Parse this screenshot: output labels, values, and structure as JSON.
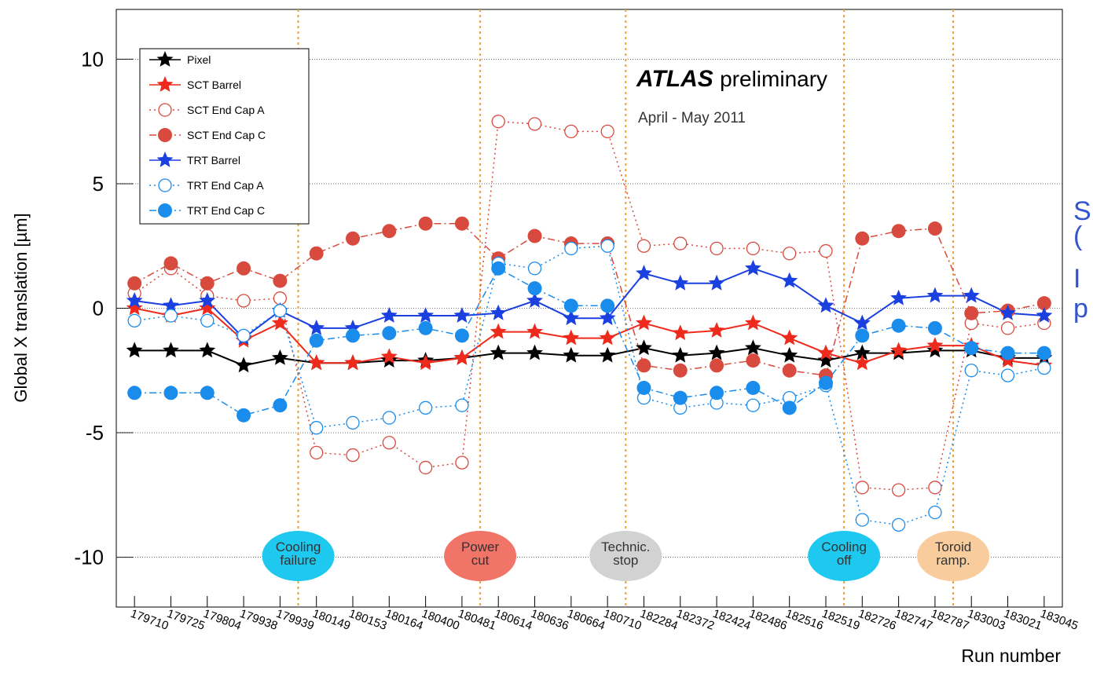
{
  "chart_data": {
    "type": "line",
    "title": [
      "ATLAS",
      "preliminary"
    ],
    "subtitle": "April - May 2011",
    "y_label": "Global X translation [µm]",
    "x_label": "Run number",
    "categories": [
      "179710",
      "179725",
      "179804",
      "179938",
      "179939",
      "180149",
      "180153",
      "180164",
      "180400",
      "180481",
      "180614",
      "180636",
      "180664",
      "180710",
      "182284",
      "182372",
      "182424",
      "182486",
      "182516",
      "182519",
      "182726",
      "182747",
      "182787",
      "183003",
      "183021",
      "183045"
    ],
    "ylim": [
      -12,
      12
    ],
    "yticks": [
      -10,
      -5,
      0,
      5,
      10
    ],
    "grid": true,
    "legend": "top-left",
    "event_line_color": "#f0a030",
    "annotations": [
      {
        "lines": [
          "Cooling",
          "failure"
        ],
        "after": "179939",
        "color": "#1ec8ee"
      },
      {
        "lines": [
          "Power",
          "cut"
        ],
        "after": "180481",
        "color": "#f07468"
      },
      {
        "lines": [
          "Technic.",
          "stop"
        ],
        "after": "180710",
        "color": "#d2d2d2"
      },
      {
        "lines": [
          "Cooling",
          "off"
        ],
        "after": "182519",
        "color": "#1ec8ee"
      },
      {
        "lines": [
          "Toroid",
          "ramp."
        ],
        "after": "182787",
        "color": "#f8cc9c"
      }
    ],
    "series": [
      {
        "name": "Pixel",
        "color": "#000000",
        "marker": "star",
        "line_style": "solid",
        "values": [
          -1.7,
          -1.7,
          -1.7,
          -2.3,
          -2.0,
          -2.2,
          -2.2,
          -2.1,
          -2.1,
          -2.0,
          -1.8,
          -1.8,
          -1.9,
          -1.9,
          -1.6,
          -1.9,
          -1.8,
          -1.6,
          -1.9,
          -2.1,
          -1.8,
          -1.8,
          -1.7,
          -1.7,
          -2.0,
          -2.0
        ]
      },
      {
        "name": "SCT Barrel",
        "color": "#ee2a1c",
        "marker": "star",
        "line_style": "solid",
        "values": [
          0.0,
          -0.3,
          0.0,
          -1.3,
          -0.6,
          -2.2,
          -2.2,
          -1.95,
          -2.2,
          -2.0,
          -0.95,
          -0.95,
          -1.2,
          -1.2,
          -0.6,
          -1.0,
          -0.9,
          -0.6,
          -1.2,
          -1.8,
          -2.2,
          -1.7,
          -1.5,
          -1.5,
          -2.1,
          -2.3
        ]
      },
      {
        "name": "SCT End Cap A",
        "color": "#d84a3e",
        "marker": "open-circle",
        "line_style": "dotted",
        "values": [
          0.6,
          1.6,
          0.5,
          0.3,
          0.4,
          -5.8,
          -5.9,
          -5.4,
          -6.4,
          -6.2,
          7.5,
          7.4,
          7.1,
          7.1,
          2.5,
          2.6,
          2.4,
          2.4,
          2.2,
          2.3,
          -7.2,
          -7.3,
          -7.2,
          -0.6,
          -0.8,
          -0.6
        ]
      },
      {
        "name": "SCT End Cap C",
        "color": "#d84a3e",
        "marker": "circle",
        "line_style": "dashdot",
        "values": [
          1.0,
          1.8,
          1.0,
          1.6,
          1.1,
          2.2,
          2.8,
          3.1,
          3.4,
          3.4,
          2.0,
          2.9,
          2.6,
          2.6,
          -2.3,
          -2.5,
          -2.3,
          -2.1,
          -2.5,
          -2.7,
          2.8,
          3.1,
          3.2,
          -0.2,
          -0.1,
          0.2
        ]
      },
      {
        "name": "TRT Barrel",
        "color": "#1a40e0",
        "marker": "star",
        "line_style": "solid",
        "values": [
          0.3,
          0.1,
          0.3,
          -1.2,
          -0.1,
          -0.8,
          -0.8,
          -0.3,
          -0.3,
          -0.3,
          -0.2,
          0.3,
          -0.4,
          -0.4,
          1.4,
          1.0,
          1.0,
          1.6,
          1.1,
          0.1,
          -0.6,
          0.4,
          0.5,
          0.5,
          -0.2,
          -0.3
        ]
      },
      {
        "name": "TRT End Cap A",
        "color": "#1a8cec",
        "marker": "open-circle",
        "line_style": "dotted",
        "values": [
          -0.5,
          -0.3,
          -0.5,
          -1.1,
          -0.1,
          -4.8,
          -4.6,
          -4.4,
          -4.0,
          -3.9,
          1.8,
          1.6,
          2.4,
          2.5,
          -3.6,
          -4.0,
          -3.8,
          -3.9,
          -3.6,
          -3.1,
          -8.5,
          -8.7,
          -8.2,
          -2.5,
          -2.7,
          -2.4
        ]
      },
      {
        "name": "TRT End Cap C",
        "color": "#1a8cec",
        "marker": "circle",
        "line_style": "dashdot",
        "values": [
          -3.4,
          -3.4,
          -3.4,
          -4.3,
          -3.9,
          -1.3,
          -1.1,
          -1.0,
          -0.8,
          -1.1,
          1.6,
          0.8,
          0.1,
          0.1,
          -3.2,
          -3.6,
          -3.4,
          -3.2,
          -4.0,
          -3.0,
          -1.1,
          -0.7,
          -0.8,
          -1.6,
          -1.8,
          -1.8
        ]
      }
    ]
  },
  "slide_text": [
    "S",
    "(",
    "I",
    "p"
  ]
}
